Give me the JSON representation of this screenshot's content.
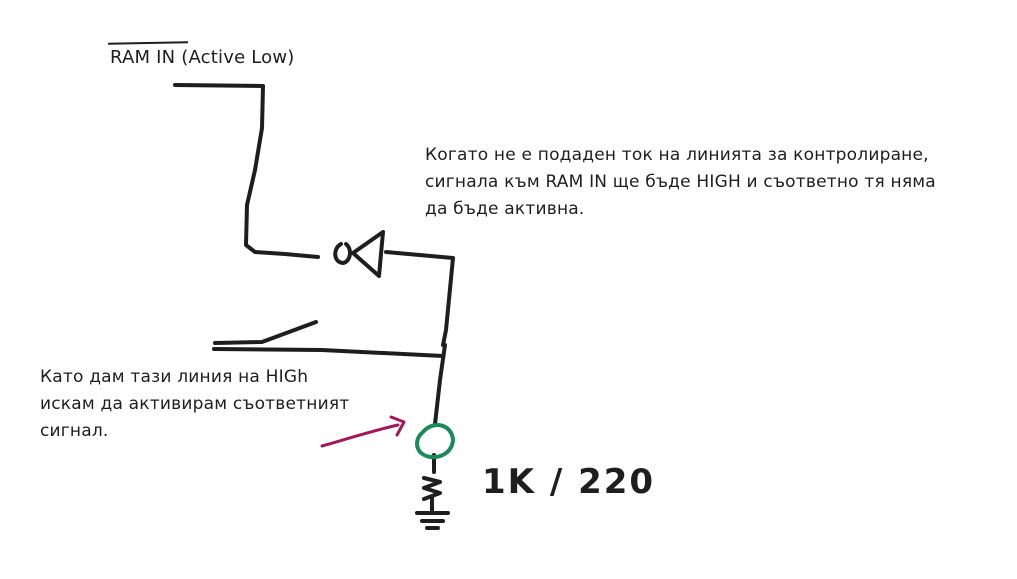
{
  "labels": {
    "ram_in": "RAM IN (Active Low)",
    "note_top": "Когато не е подаден ток на линията за контролиране,\nсигнала към RAM IN ще бъде HIGH и съответно тя няма\nда бъде активна.",
    "note_left": "Като дам тази линия на HIGh\nискам да активирам съответният\nсигнал.",
    "resistor": "1K / 220"
  },
  "colors": {
    "ink": "#1e1e1e",
    "arrow": "#a1195a",
    "led_circle": "#1a8a5a"
  }
}
